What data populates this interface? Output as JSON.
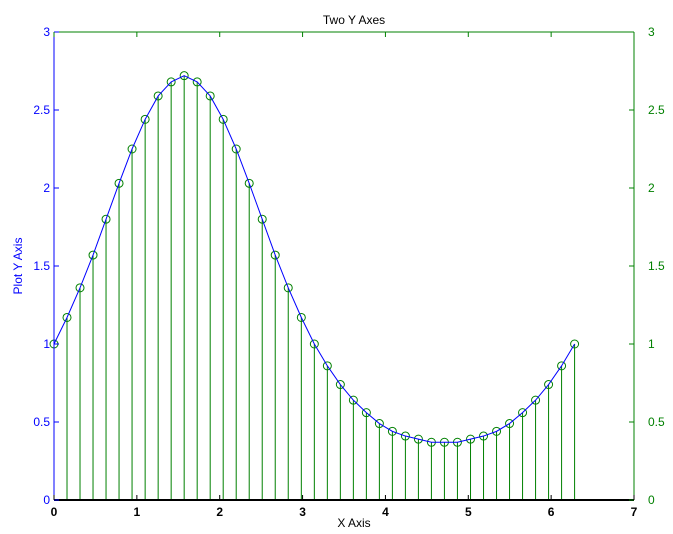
{
  "chart_data": {
    "type": "line",
    "title": "Two Y Axes",
    "xlabel": "X Axis",
    "ylabel_left": "Plot Y Axis",
    "ylabel_right": "",
    "xlim": [
      0,
      7
    ],
    "ylim_left": [
      0,
      3
    ],
    "ylim_right": [
      0,
      3
    ],
    "x_ticks": [
      0,
      1,
      2,
      3,
      4,
      5,
      6,
      7
    ],
    "y_ticks": [
      0,
      0.5,
      1,
      1.5,
      2,
      2.5,
      3
    ],
    "grid": false,
    "colors": {
      "line_series": "#0000ff",
      "stem_series": "#008000",
      "left_axis": "#0000ff",
      "right_axis": "#008000",
      "frame": "#000000"
    },
    "series": [
      {
        "type": "line",
        "axis": "left",
        "color": "#0000ff",
        "x": [
          0,
          0.157,
          0.314,
          0.471,
          0.628,
          0.785,
          0.942,
          1.1,
          1.257,
          1.414,
          1.571,
          1.728,
          1.885,
          2.042,
          2.199,
          2.356,
          2.513,
          2.67,
          2.827,
          2.985,
          3.142,
          3.299,
          3.456,
          3.613,
          3.77,
          3.927,
          4.084,
          4.241,
          4.398,
          4.555,
          4.712,
          4.869,
          5.027,
          5.184,
          5.341,
          5.498,
          5.655,
          5.812,
          5.969,
          6.126,
          6.283
        ],
        "y": [
          1.0,
          1.17,
          1.36,
          1.57,
          1.8,
          2.03,
          2.25,
          2.44,
          2.59,
          2.68,
          2.72,
          2.68,
          2.59,
          2.44,
          2.25,
          2.03,
          1.8,
          1.57,
          1.36,
          1.17,
          1.0,
          0.86,
          0.74,
          0.64,
          0.56,
          0.49,
          0.44,
          0.41,
          0.39,
          0.37,
          0.37,
          0.37,
          0.39,
          0.41,
          0.44,
          0.49,
          0.56,
          0.64,
          0.74,
          0.86,
          1.0
        ]
      },
      {
        "type": "stem",
        "axis": "right",
        "color": "#008000",
        "x": [
          0,
          0.157,
          0.314,
          0.471,
          0.628,
          0.785,
          0.942,
          1.1,
          1.257,
          1.414,
          1.571,
          1.728,
          1.885,
          2.042,
          2.199,
          2.356,
          2.513,
          2.67,
          2.827,
          2.985,
          3.142,
          3.299,
          3.456,
          3.613,
          3.77,
          3.927,
          4.084,
          4.241,
          4.398,
          4.555,
          4.712,
          4.869,
          5.027,
          5.184,
          5.341,
          5.498,
          5.655,
          5.812,
          5.969,
          6.126,
          6.283
        ],
        "y": [
          1.0,
          1.17,
          1.36,
          1.57,
          1.8,
          2.03,
          2.25,
          2.44,
          2.59,
          2.68,
          2.72,
          2.68,
          2.59,
          2.44,
          2.25,
          2.03,
          1.8,
          1.57,
          1.36,
          1.17,
          1.0,
          0.86,
          0.74,
          0.64,
          0.56,
          0.49,
          0.44,
          0.41,
          0.39,
          0.37,
          0.37,
          0.37,
          0.39,
          0.41,
          0.44,
          0.49,
          0.56,
          0.64,
          0.74,
          0.86,
          1.0
        ]
      }
    ]
  }
}
